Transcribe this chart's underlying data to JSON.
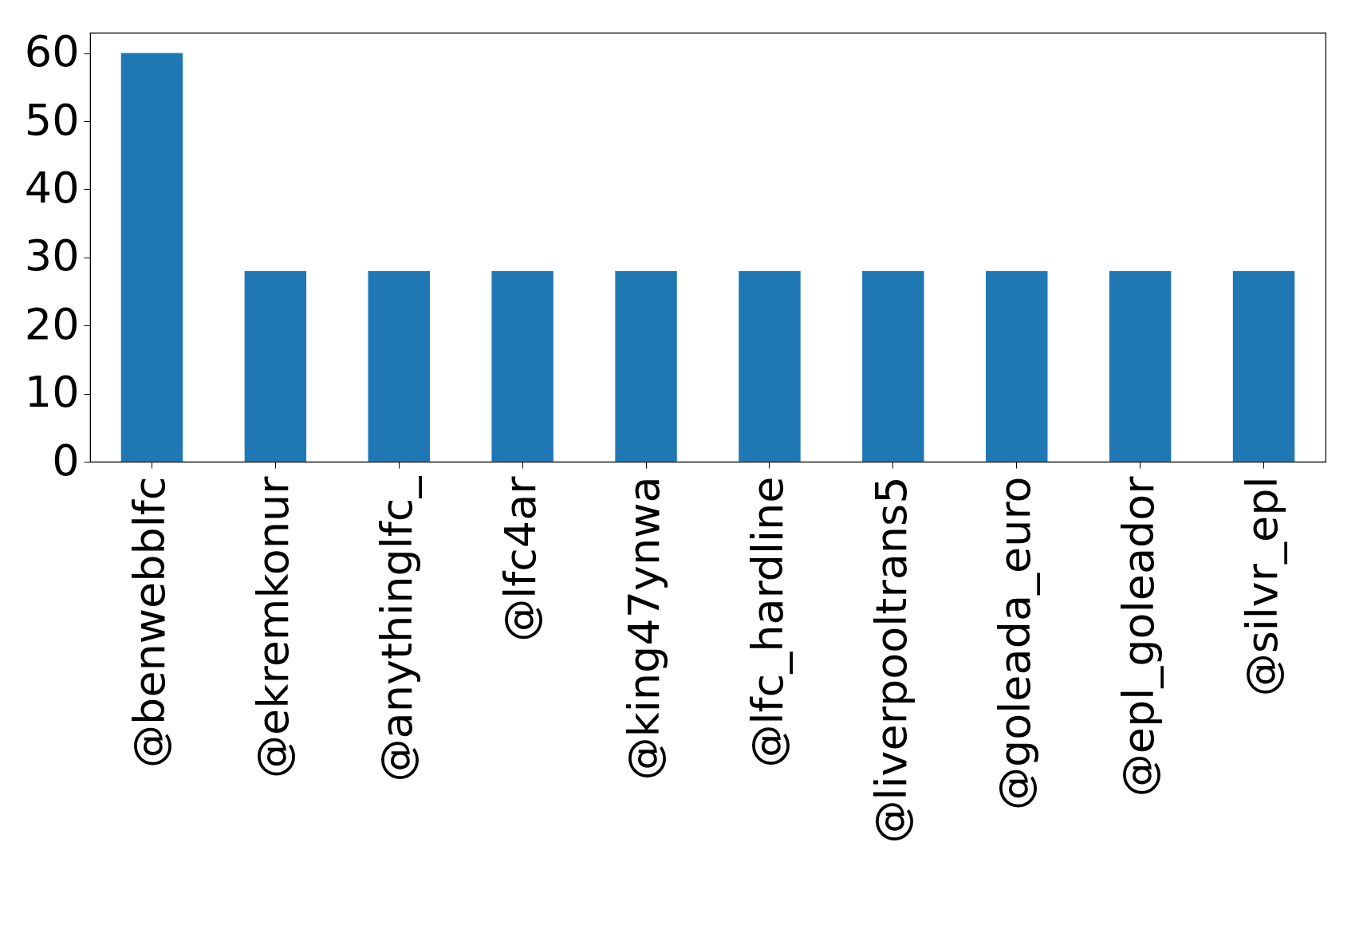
{
  "chart_data": {
    "type": "bar",
    "categories": [
      "@benwebblfc",
      "@ekremkonur",
      "@anythinglfc_",
      "@lfc4ar",
      "@king47ynwa",
      "@lfc_hardline",
      "@liverpooltrans5",
      "@goleada_euro",
      "@epl_goleador",
      "@silvr_epl"
    ],
    "values": [
      60,
      28,
      28,
      28,
      28,
      28,
      28,
      28,
      28,
      28
    ],
    "color": "#1f77b4",
    "ylim": [
      0,
      63
    ],
    "yticks": [
      0,
      10,
      20,
      30,
      40,
      50,
      60
    ],
    "grid": false
  }
}
